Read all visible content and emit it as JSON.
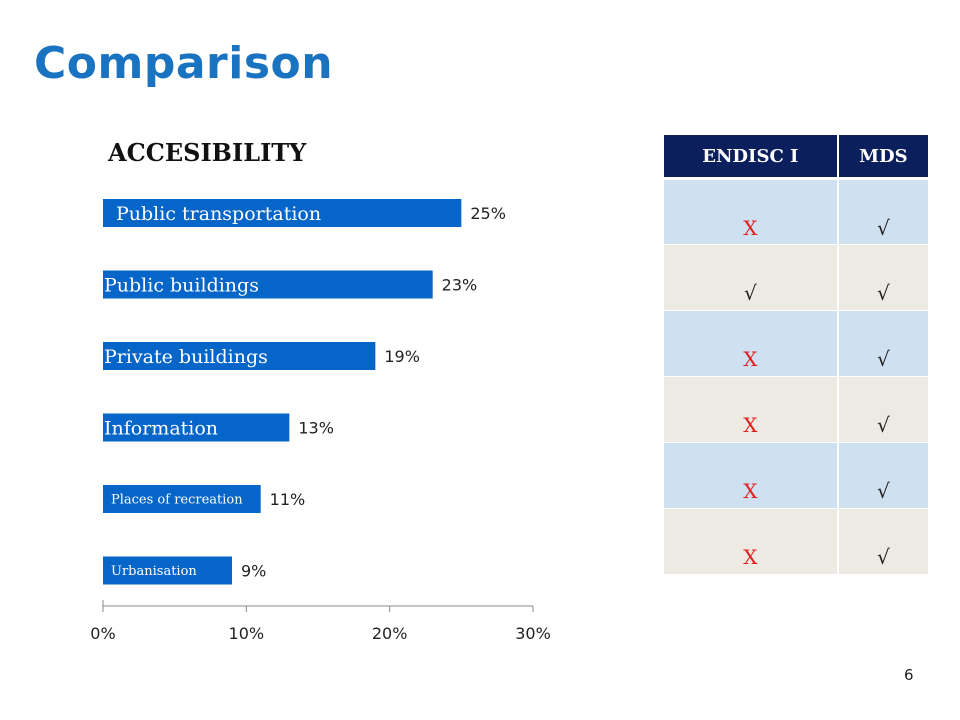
{
  "slide": {
    "title": "Comparison",
    "page_number": "6"
  },
  "colors": {
    "title": "#1a73c0",
    "bar": "#0565c8",
    "table_header": "#0b1f5c",
    "row_odd": "#cfe0f1",
    "row_even": "#eceae2",
    "cross": "#e02020"
  },
  "chart_data": {
    "type": "bar",
    "orientation": "horizontal",
    "title": "ACCESIBILITY",
    "categories": [
      "Public transportation",
      "Public buildings",
      "Private buildings",
      "Information",
      "Places of recreation",
      "Urbanisation"
    ],
    "values": [
      25,
      23,
      19,
      13,
      11,
      9
    ],
    "value_labels": [
      "25%",
      "23%",
      "19%",
      "13%",
      "11%",
      "9%"
    ],
    "xlim": [
      0,
      30
    ],
    "x_ticks": [
      "0%",
      "10%",
      "20%",
      "30%"
    ],
    "grid": false,
    "legend": "none"
  },
  "table": {
    "headers": [
      "ENDISC I",
      "MDS"
    ],
    "rows": [
      [
        "X",
        "√"
      ],
      [
        "√",
        "√"
      ],
      [
        "X",
        "√"
      ],
      [
        "X",
        "√"
      ],
      [
        "X",
        "√"
      ],
      [
        "X",
        "√"
      ]
    ]
  }
}
